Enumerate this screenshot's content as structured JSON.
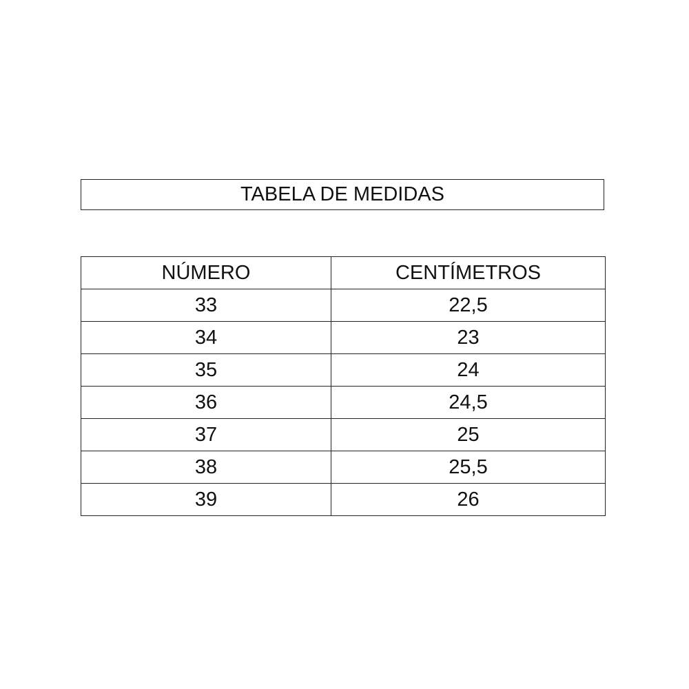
{
  "title": "TABELA DE MEDIDAS",
  "table": {
    "headers": [
      "NÚMERO",
      "CENTÍMETROS"
    ],
    "rows": [
      [
        "33",
        "22,5"
      ],
      [
        "34",
        "23"
      ],
      [
        "35",
        "24"
      ],
      [
        "36",
        "24,5"
      ],
      [
        "37",
        "25"
      ],
      [
        "38",
        "25,5"
      ],
      [
        "39",
        "26"
      ]
    ]
  }
}
